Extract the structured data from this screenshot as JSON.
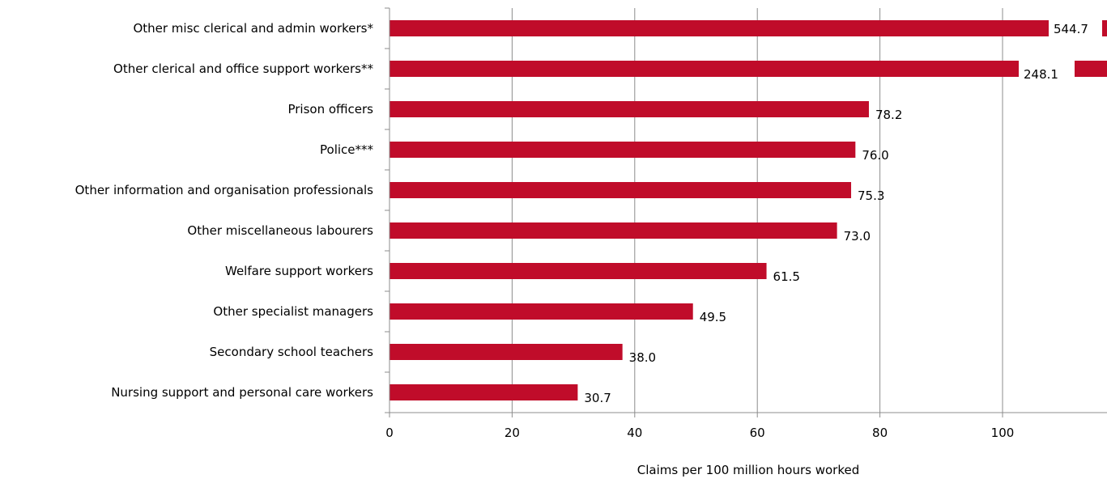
{
  "chart_data": {
    "type": "bar",
    "orientation": "horizontal",
    "categories": [
      "Other misc clerical and admin workers*",
      "Other clerical and office support workers**",
      "Prison officers",
      "Police***",
      "Other information and organisation professionals",
      "Other miscellaneous labourers",
      "Welfare support workers",
      "Other specialist managers",
      "Secondary school teachers",
      "Nursing support and personal care workers"
    ],
    "values": [
      544.7,
      248.1,
      78.2,
      76.0,
      75.3,
      73.0,
      61.5,
      49.5,
      38.0,
      30.7
    ],
    "value_labels": [
      "544.7",
      "248.1",
      "78.2",
      "76.0",
      "75.3",
      "73.0",
      "61.5",
      "49.5",
      "38.0",
      "30.7"
    ],
    "xlabel": "Claims per 100 million hours worked",
    "ylabel": "",
    "xlim": [
      0,
      118
    ],
    "xticks": [
      0,
      20,
      40,
      60,
      80,
      100
    ],
    "broken_axis_categories": [
      0,
      1
    ],
    "grid": "vertical",
    "bar_color": "#c00c2a"
  }
}
